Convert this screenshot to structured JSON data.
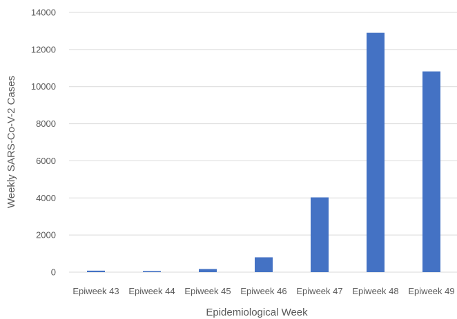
{
  "chart_data": {
    "type": "bar",
    "title": "",
    "xlabel": "Epidemiological Week",
    "ylabel": "Weekly SARS-Co-V-2 Cases",
    "categories": [
      "Epiweek 43",
      "Epiweek 44",
      "Epiweek 45",
      "Epiweek 46",
      "Epiweek 47",
      "Epiweek 48",
      "Epiweek 49"
    ],
    "values": [
      80,
      60,
      170,
      800,
      4030,
      12900,
      10820
    ],
    "ylim": [
      0,
      14000
    ],
    "yticks": [
      0,
      2000,
      4000,
      6000,
      8000,
      10000,
      12000,
      14000
    ],
    "grid": true,
    "legend": "none",
    "bar_color": "#4472c4"
  }
}
